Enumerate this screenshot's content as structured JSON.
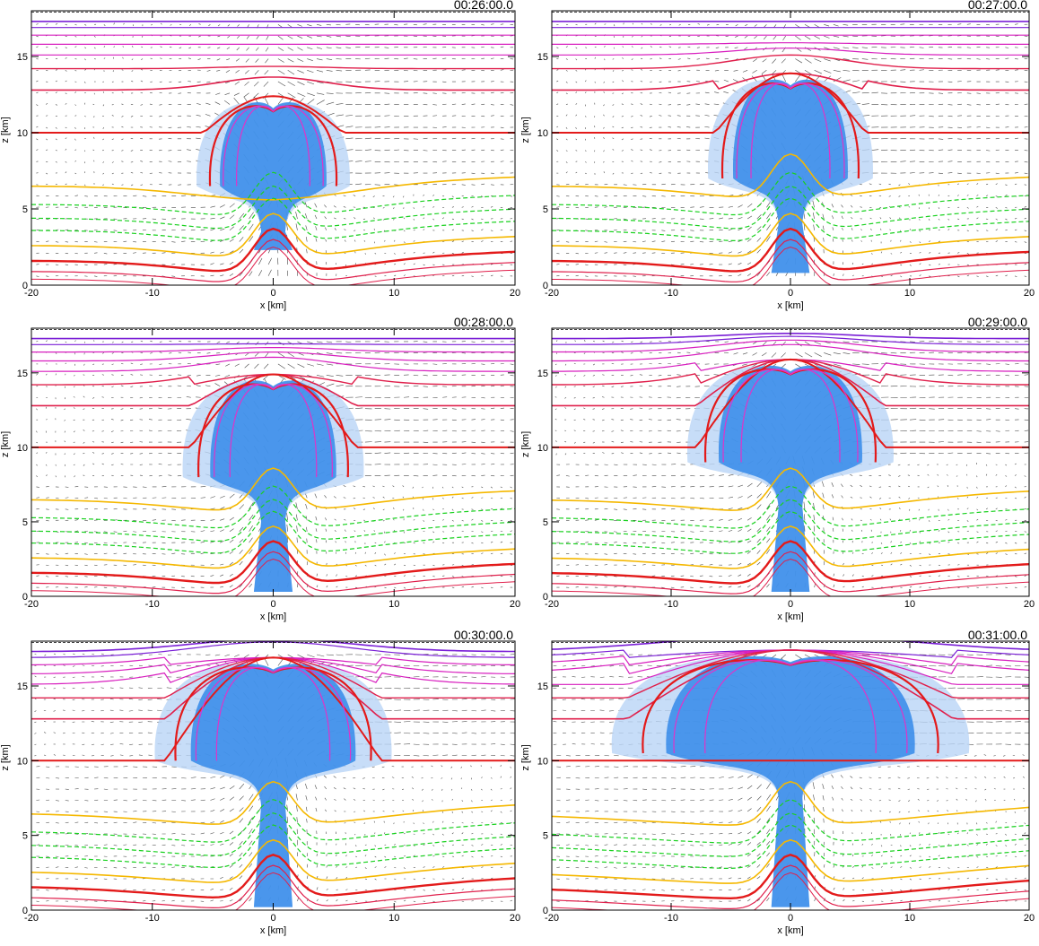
{
  "colors": {
    "background": "#ffffff",
    "axis": "#000000",
    "cloud_dense": "#2a85e8",
    "cloud_light": "#b9d4f6",
    "wind_vectors": "#4a4a4a",
    "isentrope_upper_violet": "#7a1fd6",
    "isentrope_upper_magenta": "#d81fbf",
    "isentrope_crimson": "#e0204c",
    "isentrope_red_bold": "#e31a1a",
    "isentrope_magenta_inner": "#e033c8",
    "mixing_ratio_yellow": "#f5b800",
    "mixing_ratio_green_dashed": "#19d11f"
  },
  "chart_data": [
    {
      "type": "contour",
      "time_label": "00:26:00.0",
      "xlabel": "x [km]",
      "ylabel": "z [km]",
      "xlim": [
        -20,
        20
      ],
      "ylim": [
        0,
        18
      ],
      "xticks": [
        -20,
        -10,
        0,
        10,
        20
      ],
      "yticks": [
        0,
        5,
        10,
        15
      ],
      "cloud": {
        "top_km": 12,
        "base_km": 2.3,
        "half_width_km": 5.5
      }
    },
    {
      "type": "contour",
      "time_label": "00:27:00.0",
      "xlabel": "x [km]",
      "ylabel": "z [km]",
      "xlim": [
        -20,
        20
      ],
      "ylim": [
        0,
        18
      ],
      "xticks": [
        -20,
        -10,
        0,
        10,
        20
      ],
      "yticks": [
        0,
        5,
        10,
        15
      ],
      "cloud": {
        "top_km": 13.5,
        "base_km": 0.8,
        "half_width_km": 6.0
      }
    },
    {
      "type": "contour",
      "time_label": "00:28:00.0",
      "xlabel": "x [km]",
      "ylabel": "z [km]",
      "xlim": [
        -20,
        20
      ],
      "ylim": [
        0,
        18
      ],
      "xticks": [
        -20,
        -10,
        0,
        10,
        20
      ],
      "yticks": [
        0,
        5,
        10,
        15
      ],
      "cloud": {
        "top_km": 14.5,
        "base_km": 0.3,
        "half_width_km": 6.5
      }
    },
    {
      "type": "contour",
      "time_label": "00:29:00.0",
      "xlabel": "x [km]",
      "ylabel": "z [km]",
      "xlim": [
        -20,
        20
      ],
      "ylim": [
        0,
        18
      ],
      "xticks": [
        -20,
        -10,
        0,
        10,
        20
      ],
      "yticks": [
        0,
        5,
        10,
        15
      ],
      "cloud": {
        "top_km": 15.5,
        "base_km": 0.3,
        "half_width_km": 7.5
      }
    },
    {
      "type": "contour",
      "time_label": "00:30:00.0",
      "xlabel": "x [km]",
      "ylabel": "z [km]",
      "xlim": [
        -20,
        20
      ],
      "ylim": [
        0,
        18
      ],
      "xticks": [
        -20,
        -10,
        0,
        10,
        20
      ],
      "yticks": [
        0,
        5,
        10,
        15
      ],
      "cloud": {
        "top_km": 16.5,
        "base_km": 0.2,
        "half_width_km": 8.5
      }
    },
    {
      "type": "contour",
      "time_label": "00:31:00.0",
      "xlabel": "x [km]",
      "ylabel": "z [km]",
      "xlim": [
        -20,
        20
      ],
      "ylim": [
        0,
        18
      ],
      "xticks": [
        -20,
        -10,
        0,
        10,
        20
      ],
      "yticks": [
        0,
        5,
        10,
        15
      ],
      "cloud": {
        "top_km": 17.0,
        "base_km": 0.2,
        "half_width_km": 13.0
      }
    }
  ]
}
